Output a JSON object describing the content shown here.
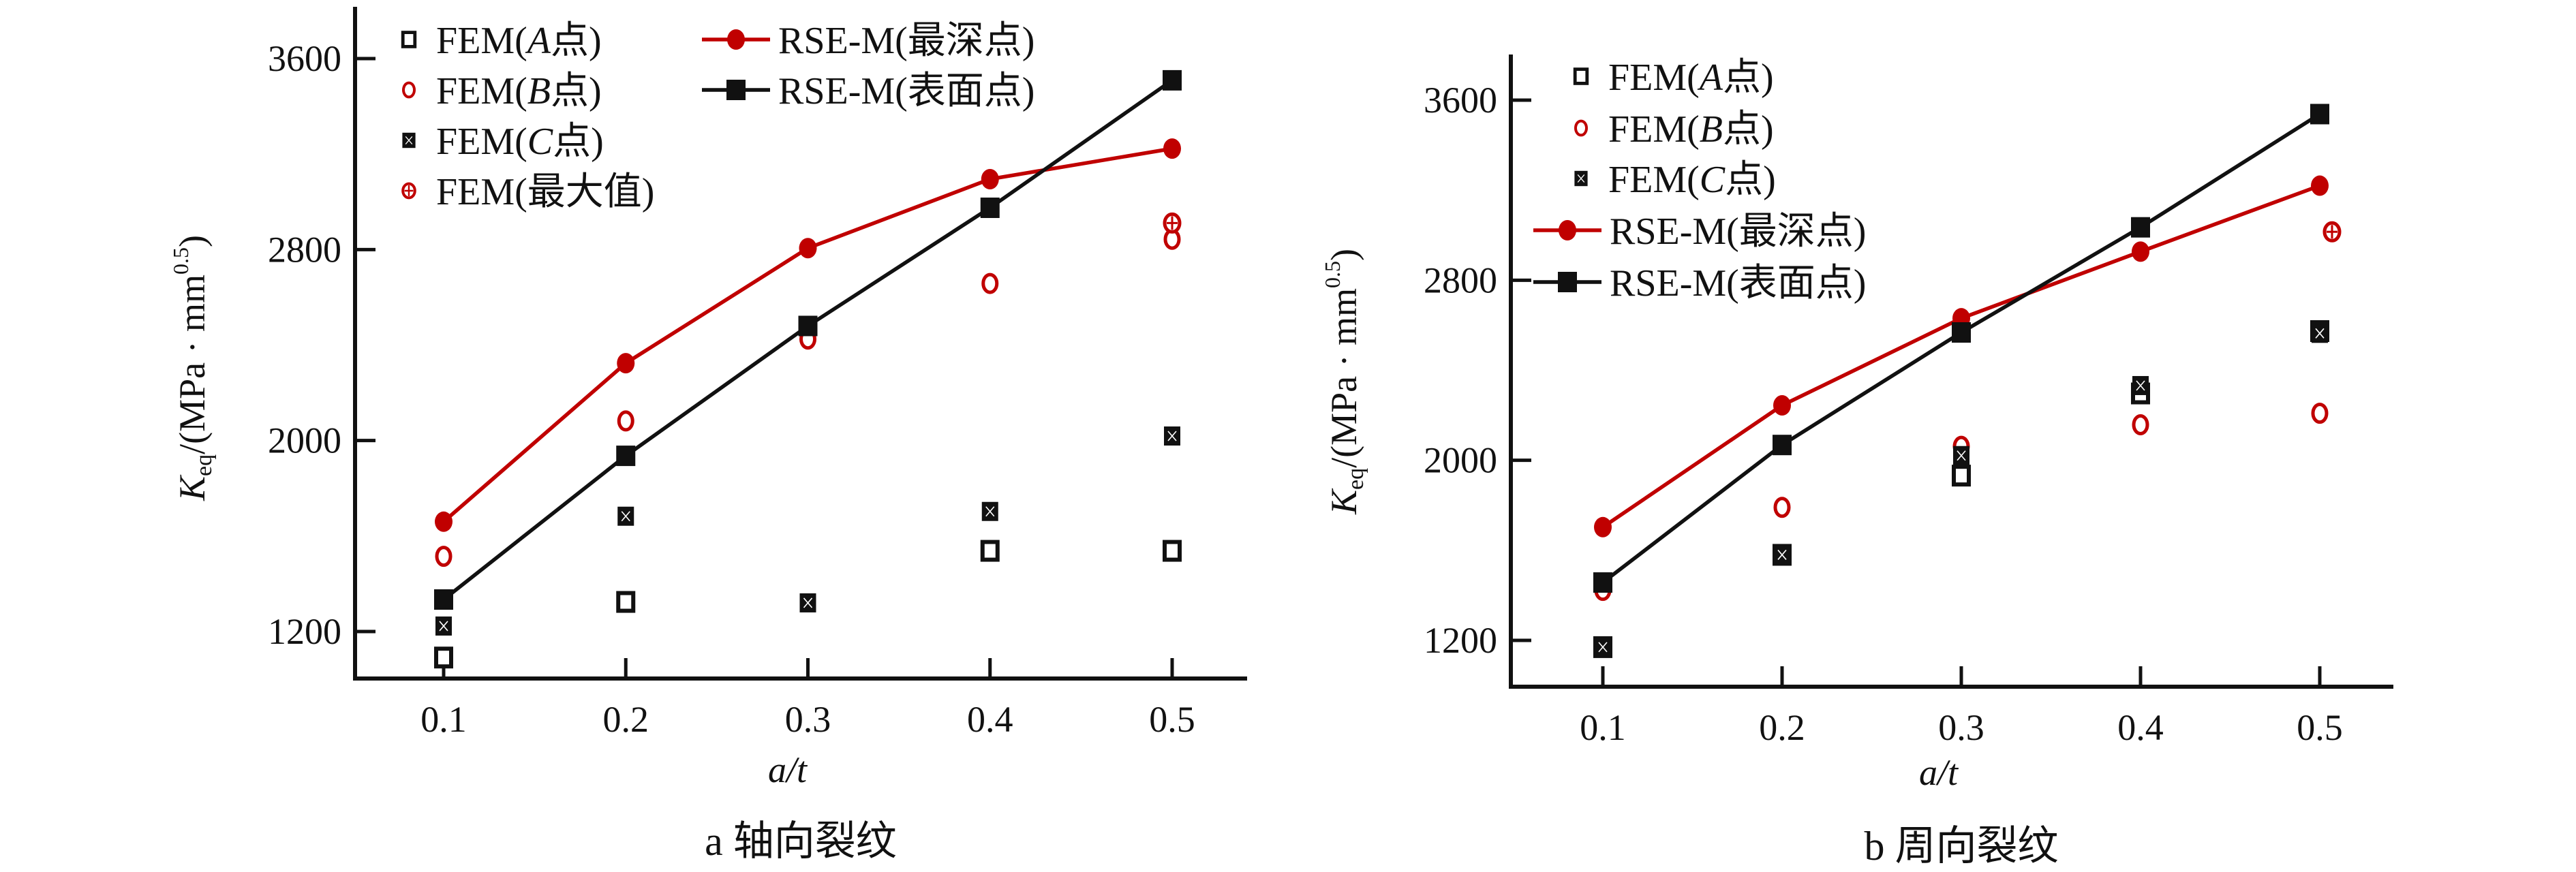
{
  "chart_data": [
    {
      "id": "a",
      "type": "line",
      "caption": "a  轴向裂纹",
      "xlabel": "a/t",
      "ylabel": "K_eq/(MPa · mm^0.5)",
      "ylabel_main": "K",
      "ylabel_sub": "eq",
      "ylabel_rest": "/(MPa · mm",
      "ylabel_sup": "0.5",
      "ylabel_close": ")",
      "xlim": [
        0.05,
        0.56
      ],
      "ylim": [
        1000,
        3700
      ],
      "x_ticks": [
        "0.1",
        "0.2",
        "0.3",
        "0.4",
        "0.5"
      ],
      "y_ticks": [
        "1200",
        "2000",
        "2800",
        "3600"
      ],
      "legend_placement": "top-left",
      "grid": false,
      "x": [
        0.1,
        0.2,
        0.3,
        0.4,
        0.5
      ],
      "series": [
        {
          "name": "FEM(A点)",
          "label_pre": "FEM(",
          "label_italic": "A",
          "label_post": "点)",
          "marker": "open-square",
          "color": "#111111",
          "line": false,
          "values": [
            1091,
            1324,
            null,
            1538,
            1538
          ]
        },
        {
          "name": "FEM(B点)",
          "label_pre": "FEM(",
          "label_italic": "B",
          "label_post": "点)",
          "marker": "open-circle",
          "color": "#c00000",
          "line": false,
          "values": [
            1515,
            2082,
            2425,
            2658,
            2843
          ]
        },
        {
          "name": "FEM(C点)",
          "label_pre": "FEM(",
          "label_italic": "C",
          "label_post": "点)",
          "marker": "crossed-square",
          "color": "#111111",
          "line": false,
          "values": [
            1223,
            1683,
            1320,
            1703,
            2019
          ]
        },
        {
          "name": "FEM(最大值)",
          "label_pre": "FEM(最大值)",
          "label_italic": "",
          "label_post": "",
          "marker": "crossed-circle",
          "color": "#c00000",
          "line": false,
          "values": [
            null,
            null,
            null,
            null,
            2911
          ]
        },
        {
          "name": "RSE-M(最深点)",
          "label_pre": "RSE-M(最深点)",
          "label_italic": "",
          "label_post": "",
          "marker": "filled-circle",
          "color": "#c00000",
          "line": true,
          "values": [
            1660,
            2324,
            2806,
            3095,
            3223
          ]
        },
        {
          "name": "RSE-M(表面点)",
          "label_pre": "RSE-M(表面点)",
          "label_italic": "",
          "label_post": "",
          "marker": "filled-square",
          "color": "#111111",
          "line": true,
          "values": [
            1334,
            1936,
            2480,
            2975,
            3509
          ]
        }
      ]
    },
    {
      "id": "b",
      "type": "line",
      "caption": "b  周向裂纹",
      "xlabel": "a/t",
      "ylabel": "K_eq/(MPa · mm^0.5)",
      "ylabel_main": "K",
      "ylabel_sub": "eq",
      "ylabel_rest": "/(MPa · mm",
      "ylabel_sup": "0.5",
      "ylabel_close": ")",
      "xlim": [
        0.05,
        0.56
      ],
      "ylim": [
        1000,
        3800
      ],
      "x_ticks": [
        "0.1",
        "0.2",
        "0.3",
        "0.4",
        "0.5"
      ],
      "y_ticks": [
        "1200",
        "2000",
        "2800",
        "3600"
      ],
      "legend_placement": "top-left",
      "grid": false,
      "x": [
        0.1,
        0.2,
        0.3,
        0.4,
        0.5
      ],
      "series": [
        {
          "name": "FEM(A点)",
          "label_pre": "FEM(",
          "label_italic": "A",
          "label_post": "点)",
          "marker": "open-square",
          "color": "#111111",
          "line": false,
          "values": [
            1170,
            1580,
            1932,
            2297,
            2574
          ]
        },
        {
          "name": "FEM(B点)",
          "label_pre": "FEM(",
          "label_italic": "B",
          "label_post": "点)",
          "marker": "open-circle",
          "color": "#c00000",
          "line": false,
          "values": [
            1422,
            1791,
            2062,
            2158,
            2209
          ]
        },
        {
          "name": "FEM(C点)",
          "label_pre": "FEM(",
          "label_italic": "C",
          "label_post": "点)",
          "marker": "crossed-square",
          "color": "#111111",
          "line": false,
          "values": [
            1170,
            1580,
            2021,
            2332,
            2564
          ]
        },
        {
          "name": "FEM(最大值)",
          "label_pre": "FEM(最大值)",
          "label_italic": "",
          "label_post": "",
          "marker": "crossed-circle",
          "color": "#c00000",
          "line": false,
          "legend": false,
          "values": [
            null,
            null,
            null,
            null,
            3015
          ]
        },
        {
          "name": "RSE-M(最深点)",
          "label_pre": "RSE-M(最深点)",
          "label_italic": "",
          "label_post": "",
          "marker": "filled-circle",
          "color": "#c00000",
          "line": true,
          "values": [
            1703,
            2244,
            2631,
            2927,
            3220
          ]
        },
        {
          "name": "RSE-M(表面点)",
          "label_pre": "RSE-M(表面点)",
          "label_italic": "",
          "label_post": "",
          "marker": "filled-square",
          "color": "#111111",
          "line": true,
          "values": [
            1457,
            2068,
            2568,
            3035,
            3538
          ]
        }
      ]
    }
  ]
}
